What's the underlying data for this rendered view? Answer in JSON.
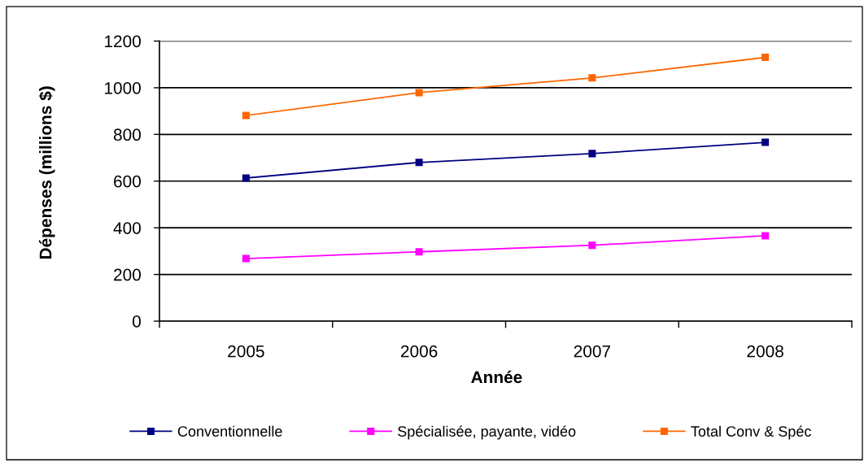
{
  "chart_data": {
    "type": "line",
    "xlabel": "Année",
    "ylabel": "Dépenses (millions $)",
    "categories": [
      "2005",
      "2006",
      "2007",
      "2008"
    ],
    "series": [
      {
        "name": "Conventionnelle",
        "color": "#000080",
        "values": [
          613,
          680,
          718,
          766
        ]
      },
      {
        "name": "Spécialisée, payante, vidéo",
        "color": "#ff00ff",
        "values": [
          268,
          297,
          325,
          366
        ]
      },
      {
        "name": "Total Conv & Spéc",
        "color": "#ff6600",
        "values": [
          881,
          979,
          1042,
          1130
        ]
      }
    ],
    "ylim": [
      0,
      1200
    ],
    "yticks": [
      0,
      200,
      400,
      600,
      800,
      1000,
      1200
    ],
    "grid": "y",
    "legend": "bottom",
    "marker": "square",
    "line_style": "solid"
  }
}
